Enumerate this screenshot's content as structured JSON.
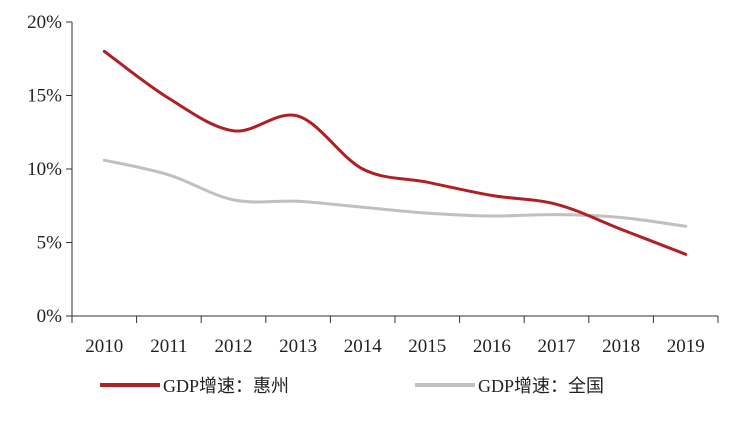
{
  "chart_data": {
    "type": "line",
    "title": "",
    "xlabel": "",
    "ylabel": "",
    "categories": [
      "2010",
      "2011",
      "2012",
      "2013",
      "2014",
      "2015",
      "2016",
      "2017",
      "2018",
      "2019"
    ],
    "y_ticks": [
      "0%",
      "5%",
      "10%",
      "15%",
      "20%"
    ],
    "ylim": [
      0,
      20
    ],
    "y_unit": "%",
    "grid": false,
    "legend_position": "bottom",
    "series": [
      {
        "name": "GDP增速：惠州",
        "color": "#b01f24",
        "values": [
          18.0,
          14.8,
          12.6,
          13.6,
          10.0,
          9.1,
          8.2,
          7.6,
          5.9,
          4.2
        ]
      },
      {
        "name": "GDP增速：全国",
        "color": "#c0c0c0",
        "values": [
          10.6,
          9.6,
          7.9,
          7.8,
          7.4,
          7.0,
          6.8,
          6.9,
          6.7,
          6.1
        ]
      }
    ]
  }
}
